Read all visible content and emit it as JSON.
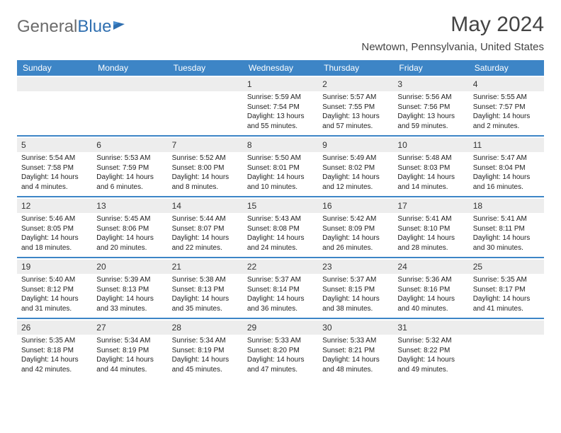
{
  "brand": {
    "part1": "General",
    "part2": "Blue"
  },
  "title": "May 2024",
  "location": "Newtown, Pennsylvania, United States",
  "dow": [
    "Sunday",
    "Monday",
    "Tuesday",
    "Wednesday",
    "Thursday",
    "Friday",
    "Saturday"
  ],
  "colors": {
    "header_bg": "#3d85c6",
    "daynum_bg": "#ededed",
    "rule": "#3d85c6"
  },
  "weeks": [
    [
      {
        "n": "",
        "sunrise": "",
        "sunset": "",
        "daylight": ""
      },
      {
        "n": "",
        "sunrise": "",
        "sunset": "",
        "daylight": ""
      },
      {
        "n": "",
        "sunrise": "",
        "sunset": "",
        "daylight": ""
      },
      {
        "n": "1",
        "sunrise": "Sunrise: 5:59 AM",
        "sunset": "Sunset: 7:54 PM",
        "daylight": "Daylight: 13 hours and 55 minutes."
      },
      {
        "n": "2",
        "sunrise": "Sunrise: 5:57 AM",
        "sunset": "Sunset: 7:55 PM",
        "daylight": "Daylight: 13 hours and 57 minutes."
      },
      {
        "n": "3",
        "sunrise": "Sunrise: 5:56 AM",
        "sunset": "Sunset: 7:56 PM",
        "daylight": "Daylight: 13 hours and 59 minutes."
      },
      {
        "n": "4",
        "sunrise": "Sunrise: 5:55 AM",
        "sunset": "Sunset: 7:57 PM",
        "daylight": "Daylight: 14 hours and 2 minutes."
      }
    ],
    [
      {
        "n": "5",
        "sunrise": "Sunrise: 5:54 AM",
        "sunset": "Sunset: 7:58 PM",
        "daylight": "Daylight: 14 hours and 4 minutes."
      },
      {
        "n": "6",
        "sunrise": "Sunrise: 5:53 AM",
        "sunset": "Sunset: 7:59 PM",
        "daylight": "Daylight: 14 hours and 6 minutes."
      },
      {
        "n": "7",
        "sunrise": "Sunrise: 5:52 AM",
        "sunset": "Sunset: 8:00 PM",
        "daylight": "Daylight: 14 hours and 8 minutes."
      },
      {
        "n": "8",
        "sunrise": "Sunrise: 5:50 AM",
        "sunset": "Sunset: 8:01 PM",
        "daylight": "Daylight: 14 hours and 10 minutes."
      },
      {
        "n": "9",
        "sunrise": "Sunrise: 5:49 AM",
        "sunset": "Sunset: 8:02 PM",
        "daylight": "Daylight: 14 hours and 12 minutes."
      },
      {
        "n": "10",
        "sunrise": "Sunrise: 5:48 AM",
        "sunset": "Sunset: 8:03 PM",
        "daylight": "Daylight: 14 hours and 14 minutes."
      },
      {
        "n": "11",
        "sunrise": "Sunrise: 5:47 AM",
        "sunset": "Sunset: 8:04 PM",
        "daylight": "Daylight: 14 hours and 16 minutes."
      }
    ],
    [
      {
        "n": "12",
        "sunrise": "Sunrise: 5:46 AM",
        "sunset": "Sunset: 8:05 PM",
        "daylight": "Daylight: 14 hours and 18 minutes."
      },
      {
        "n": "13",
        "sunrise": "Sunrise: 5:45 AM",
        "sunset": "Sunset: 8:06 PM",
        "daylight": "Daylight: 14 hours and 20 minutes."
      },
      {
        "n": "14",
        "sunrise": "Sunrise: 5:44 AM",
        "sunset": "Sunset: 8:07 PM",
        "daylight": "Daylight: 14 hours and 22 minutes."
      },
      {
        "n": "15",
        "sunrise": "Sunrise: 5:43 AM",
        "sunset": "Sunset: 8:08 PM",
        "daylight": "Daylight: 14 hours and 24 minutes."
      },
      {
        "n": "16",
        "sunrise": "Sunrise: 5:42 AM",
        "sunset": "Sunset: 8:09 PM",
        "daylight": "Daylight: 14 hours and 26 minutes."
      },
      {
        "n": "17",
        "sunrise": "Sunrise: 5:41 AM",
        "sunset": "Sunset: 8:10 PM",
        "daylight": "Daylight: 14 hours and 28 minutes."
      },
      {
        "n": "18",
        "sunrise": "Sunrise: 5:41 AM",
        "sunset": "Sunset: 8:11 PM",
        "daylight": "Daylight: 14 hours and 30 minutes."
      }
    ],
    [
      {
        "n": "19",
        "sunrise": "Sunrise: 5:40 AM",
        "sunset": "Sunset: 8:12 PM",
        "daylight": "Daylight: 14 hours and 31 minutes."
      },
      {
        "n": "20",
        "sunrise": "Sunrise: 5:39 AM",
        "sunset": "Sunset: 8:13 PM",
        "daylight": "Daylight: 14 hours and 33 minutes."
      },
      {
        "n": "21",
        "sunrise": "Sunrise: 5:38 AM",
        "sunset": "Sunset: 8:13 PM",
        "daylight": "Daylight: 14 hours and 35 minutes."
      },
      {
        "n": "22",
        "sunrise": "Sunrise: 5:37 AM",
        "sunset": "Sunset: 8:14 PM",
        "daylight": "Daylight: 14 hours and 36 minutes."
      },
      {
        "n": "23",
        "sunrise": "Sunrise: 5:37 AM",
        "sunset": "Sunset: 8:15 PM",
        "daylight": "Daylight: 14 hours and 38 minutes."
      },
      {
        "n": "24",
        "sunrise": "Sunrise: 5:36 AM",
        "sunset": "Sunset: 8:16 PM",
        "daylight": "Daylight: 14 hours and 40 minutes."
      },
      {
        "n": "25",
        "sunrise": "Sunrise: 5:35 AM",
        "sunset": "Sunset: 8:17 PM",
        "daylight": "Daylight: 14 hours and 41 minutes."
      }
    ],
    [
      {
        "n": "26",
        "sunrise": "Sunrise: 5:35 AM",
        "sunset": "Sunset: 8:18 PM",
        "daylight": "Daylight: 14 hours and 42 minutes."
      },
      {
        "n": "27",
        "sunrise": "Sunrise: 5:34 AM",
        "sunset": "Sunset: 8:19 PM",
        "daylight": "Daylight: 14 hours and 44 minutes."
      },
      {
        "n": "28",
        "sunrise": "Sunrise: 5:34 AM",
        "sunset": "Sunset: 8:19 PM",
        "daylight": "Daylight: 14 hours and 45 minutes."
      },
      {
        "n": "29",
        "sunrise": "Sunrise: 5:33 AM",
        "sunset": "Sunset: 8:20 PM",
        "daylight": "Daylight: 14 hours and 47 minutes."
      },
      {
        "n": "30",
        "sunrise": "Sunrise: 5:33 AM",
        "sunset": "Sunset: 8:21 PM",
        "daylight": "Daylight: 14 hours and 48 minutes."
      },
      {
        "n": "31",
        "sunrise": "Sunrise: 5:32 AM",
        "sunset": "Sunset: 8:22 PM",
        "daylight": "Daylight: 14 hours and 49 minutes."
      },
      {
        "n": "",
        "sunrise": "",
        "sunset": "",
        "daylight": ""
      }
    ]
  ]
}
